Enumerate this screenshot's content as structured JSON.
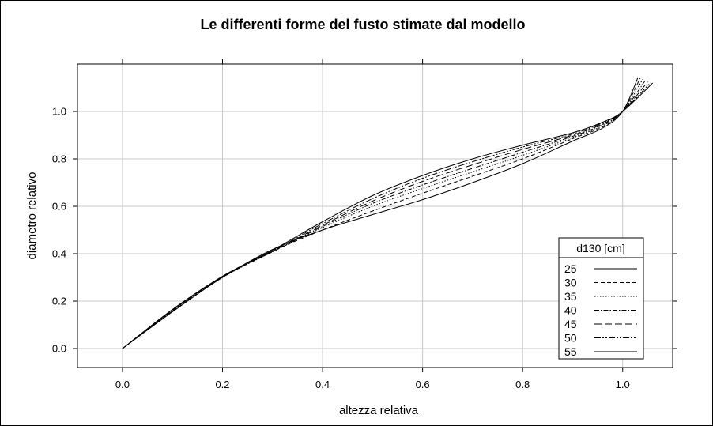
{
  "chart_data": {
    "type": "line",
    "title": "Le differenti forme del fusto stimate dal modello",
    "xlabel": "altezza relativa",
    "ylabel": "diametro relativo",
    "xlim": [
      -0.09,
      1.1
    ],
    "ylim": [
      -0.08,
      1.2
    ],
    "xticks": [
      0.0,
      0.2,
      0.4,
      0.6,
      0.8,
      1.0
    ],
    "xtick_labels": [
      "0.0",
      "0.2",
      "0.4",
      "0.6",
      "0.8",
      "1.0"
    ],
    "yticks": [
      0.0,
      0.2,
      0.4,
      0.6,
      0.8,
      1.0
    ],
    "ytick_labels": [
      "0.0",
      "0.2",
      "0.4",
      "0.6",
      "0.8",
      "1.0"
    ],
    "grid": true,
    "legend": {
      "title": "d130 [cm]",
      "placement": "bottom-right"
    },
    "series": [
      {
        "name": "25",
        "dash": "",
        "x": [
          0,
          0.1,
          0.2,
          0.3,
          0.4,
          0.5,
          0.6,
          0.7,
          0.8,
          0.9,
          0.96,
          1.0,
          1.03
        ],
        "y": [
          0,
          0.155,
          0.3,
          0.418,
          0.5,
          0.565,
          0.628,
          0.7,
          0.78,
          0.875,
          0.93,
          1.0,
          1.14
        ]
      },
      {
        "name": "30",
        "dash": "5,3",
        "x": [
          0,
          0.1,
          0.2,
          0.3,
          0.4,
          0.5,
          0.6,
          0.7,
          0.8,
          0.9,
          0.96,
          1.0,
          1.035
        ],
        "y": [
          0,
          0.158,
          0.3,
          0.41,
          0.5,
          0.58,
          0.655,
          0.727,
          0.8,
          0.885,
          0.935,
          1.0,
          1.14
        ]
      },
      {
        "name": "35",
        "dash": "1.5,2",
        "x": [
          0,
          0.1,
          0.2,
          0.3,
          0.4,
          0.5,
          0.6,
          0.7,
          0.8,
          0.9,
          0.96,
          1.0,
          1.04
        ],
        "y": [
          0,
          0.16,
          0.3,
          0.408,
          0.51,
          0.6,
          0.675,
          0.745,
          0.815,
          0.89,
          0.94,
          1.0,
          1.135
        ]
      },
      {
        "name": "40",
        "dash": "6,2,1.5,2",
        "x": [
          0,
          0.1,
          0.2,
          0.3,
          0.4,
          0.5,
          0.6,
          0.7,
          0.8,
          0.9,
          0.96,
          1.0,
          1.045
        ],
        "y": [
          0,
          0.162,
          0.302,
          0.408,
          0.515,
          0.612,
          0.69,
          0.76,
          0.828,
          0.895,
          0.945,
          1.0,
          1.13
        ]
      },
      {
        "name": "45",
        "dash": "9,4",
        "x": [
          0,
          0.1,
          0.2,
          0.3,
          0.4,
          0.5,
          0.6,
          0.7,
          0.8,
          0.9,
          0.96,
          1.0,
          1.05
        ],
        "y": [
          0,
          0.163,
          0.303,
          0.41,
          0.52,
          0.622,
          0.705,
          0.775,
          0.84,
          0.9,
          0.948,
          1.0,
          1.125
        ]
      },
      {
        "name": "50",
        "dash": "8,2,2,2,2,2",
        "x": [
          0,
          0.1,
          0.2,
          0.3,
          0.4,
          0.5,
          0.6,
          0.7,
          0.8,
          0.9,
          0.96,
          1.0,
          1.055
        ],
        "y": [
          0,
          0.164,
          0.304,
          0.412,
          0.527,
          0.632,
          0.718,
          0.788,
          0.85,
          0.905,
          0.952,
          1.0,
          1.12
        ]
      },
      {
        "name": "55",
        "dash": "",
        "x": [
          0,
          0.1,
          0.2,
          0.3,
          0.4,
          0.5,
          0.6,
          0.7,
          0.8,
          0.9,
          0.96,
          1.0,
          1.06
        ],
        "y": [
          0,
          0.165,
          0.305,
          0.415,
          0.535,
          0.645,
          0.73,
          0.8,
          0.858,
          0.91,
          0.955,
          1.0,
          1.12
        ]
      }
    ]
  }
}
